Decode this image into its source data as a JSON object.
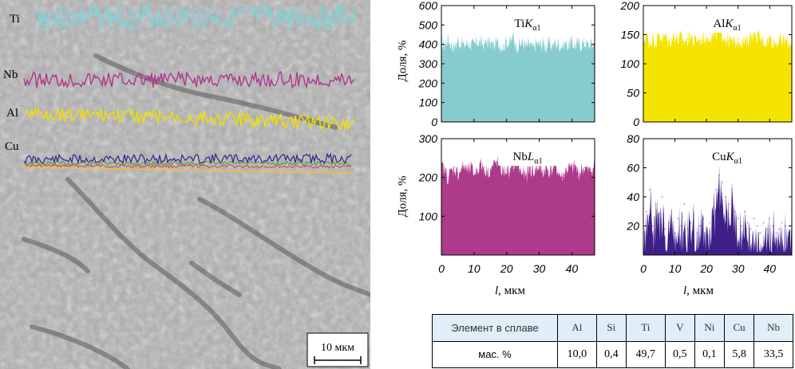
{
  "micrograph": {
    "labels": [
      "Ti",
      "Nb",
      "Al",
      "Cu"
    ],
    "scale_bar": "10 мкм",
    "colors": {
      "Ti": "#7fd3d8",
      "Nb": "#b0368c",
      "Al": "#f0e000",
      "Cu": "#3d1e86",
      "extra1": "#e04040",
      "extra2": "#40a040"
    }
  },
  "chart_data": [
    {
      "type": "area",
      "title": "TiKα1",
      "title_main": "Ti",
      "title_k": "K",
      "title_sub": "α1",
      "ylabel": "Доля, %",
      "xlabel": "",
      "ylim": [
        0,
        600
      ],
      "yticks": [
        0,
        100,
        200,
        300,
        400,
        500,
        600
      ],
      "xlim": [
        0,
        47
      ],
      "color": "#86cbce",
      "x": [
        0,
        1,
        2,
        3,
        4,
        5,
        6,
        7,
        8,
        9,
        10,
        11,
        12,
        13,
        14,
        15,
        16,
        17,
        18,
        19,
        20,
        21,
        22,
        23,
        24,
        25,
        26,
        27,
        28,
        29,
        30,
        31,
        32,
        33,
        34,
        35,
        36,
        37,
        38,
        39,
        40,
        41,
        42,
        43,
        44,
        45,
        46,
        47
      ],
      "values": [
        410,
        395,
        430,
        400,
        385,
        420,
        405,
        395,
        410,
        400,
        390,
        415,
        405,
        398,
        412,
        402,
        395,
        408,
        400,
        392,
        418,
        405,
        440,
        395,
        400,
        410,
        385,
        400,
        375,
        405,
        395,
        410,
        388,
        402,
        395,
        408,
        400,
        392,
        405,
        398,
        410,
        395,
        402,
        400,
        408,
        395,
        400,
        405
      ]
    },
    {
      "type": "area",
      "title": "AlKα1",
      "title_main": "Al",
      "title_k": "K",
      "title_sub": "α1",
      "ylabel": "",
      "xlabel": "",
      "ylim": [
        0,
        200
      ],
      "yticks": [
        0,
        50,
        100,
        150,
        200
      ],
      "xlim": [
        0,
        47
      ],
      "color": "#f5e400",
      "x": [
        0,
        1,
        2,
        3,
        4,
        5,
        6,
        7,
        8,
        9,
        10,
        11,
        12,
        13,
        14,
        15,
        16,
        17,
        18,
        19,
        20,
        21,
        22,
        23,
        24,
        25,
        26,
        27,
        28,
        29,
        30,
        31,
        32,
        33,
        34,
        35,
        36,
        37,
        38,
        39,
        40,
        41,
        42,
        43,
        44,
        45,
        46,
        47
      ],
      "values": [
        140,
        150,
        135,
        145,
        138,
        150,
        142,
        148,
        136,
        144,
        150,
        140,
        146,
        138,
        142,
        150,
        136,
        144,
        140,
        148,
        142,
        150,
        145,
        152,
        160,
        150,
        145,
        140,
        138,
        135,
        142,
        140,
        136,
        138,
        150,
        155,
        148,
        142,
        140,
        138,
        145,
        140,
        136,
        142,
        138,
        140,
        135,
        138
      ]
    },
    {
      "type": "area",
      "title": "NbLα1",
      "title_main": "Nb",
      "title_k": "L",
      "title_sub": "α1",
      "ylabel": "Доля, %",
      "xlabel": "l, мкм",
      "ylim": [
        0,
        300
      ],
      "yticks": [
        100,
        200,
        300
      ],
      "xticks": [
        0,
        10,
        20,
        30,
        40
      ],
      "xlim": [
        0,
        47
      ],
      "color": "#ae3a8c",
      "x": [
        0,
        1,
        2,
        3,
        4,
        5,
        6,
        7,
        8,
        9,
        10,
        11,
        12,
        13,
        14,
        15,
        16,
        17,
        18,
        19,
        20,
        21,
        22,
        23,
        24,
        25,
        26,
        27,
        28,
        29,
        30,
        31,
        32,
        33,
        34,
        35,
        36,
        37,
        38,
        39,
        40,
        41,
        42,
        43,
        44,
        45,
        46,
        47
      ],
      "values": [
        230,
        220,
        200,
        215,
        225,
        210,
        220,
        230,
        215,
        225,
        210,
        220,
        235,
        225,
        215,
        220,
        230,
        240,
        225,
        215,
        220,
        210,
        230,
        240,
        220,
        210,
        200,
        225,
        215,
        220,
        230,
        210,
        225,
        215,
        220,
        230,
        210,
        200,
        215,
        225,
        220,
        230,
        210,
        220,
        225,
        215,
        220,
        230
      ]
    },
    {
      "type": "area",
      "title": "CuKα1",
      "title_main": "Cu",
      "title_k": "K",
      "title_sub": "α1",
      "ylabel": "",
      "xlabel": "l, мкм",
      "ylim": [
        0,
        80
      ],
      "yticks": [
        20,
        40,
        60,
        80
      ],
      "xticks": [
        0,
        10,
        20,
        30,
        40
      ],
      "xlim": [
        0,
        47
      ],
      "color": "#3e1f87",
      "x": [
        0,
        1,
        2,
        3,
        4,
        5,
        6,
        7,
        8,
        9,
        10,
        11,
        12,
        13,
        14,
        15,
        16,
        17,
        18,
        19,
        20,
        21,
        22,
        23,
        24,
        25,
        26,
        27,
        28,
        29,
        30,
        31,
        32,
        33,
        34,
        35,
        36,
        37,
        38,
        39,
        40,
        41,
        42,
        43,
        44,
        45,
        46,
        47
      ],
      "values": [
        15,
        30,
        45,
        20,
        35,
        25,
        40,
        18,
        22,
        30,
        15,
        25,
        20,
        35,
        18,
        22,
        28,
        15,
        20,
        25,
        18,
        22,
        30,
        45,
        55,
        50,
        40,
        35,
        45,
        30,
        25,
        20,
        30,
        22,
        18,
        25,
        20,
        15,
        22,
        18,
        25,
        20,
        15,
        18,
        22,
        20,
        15,
        18
      ]
    }
  ],
  "composition_table": {
    "header_label": "Элемент в сплаве",
    "row_label": "мас. %",
    "elements": [
      "Al",
      "Si",
      "Ti",
      "V",
      "Ni",
      "Cu",
      "Nb"
    ],
    "values": [
      "10,0",
      "0,4",
      "49,7",
      "0,5",
      "0,1",
      "5,8",
      "33,5"
    ]
  }
}
